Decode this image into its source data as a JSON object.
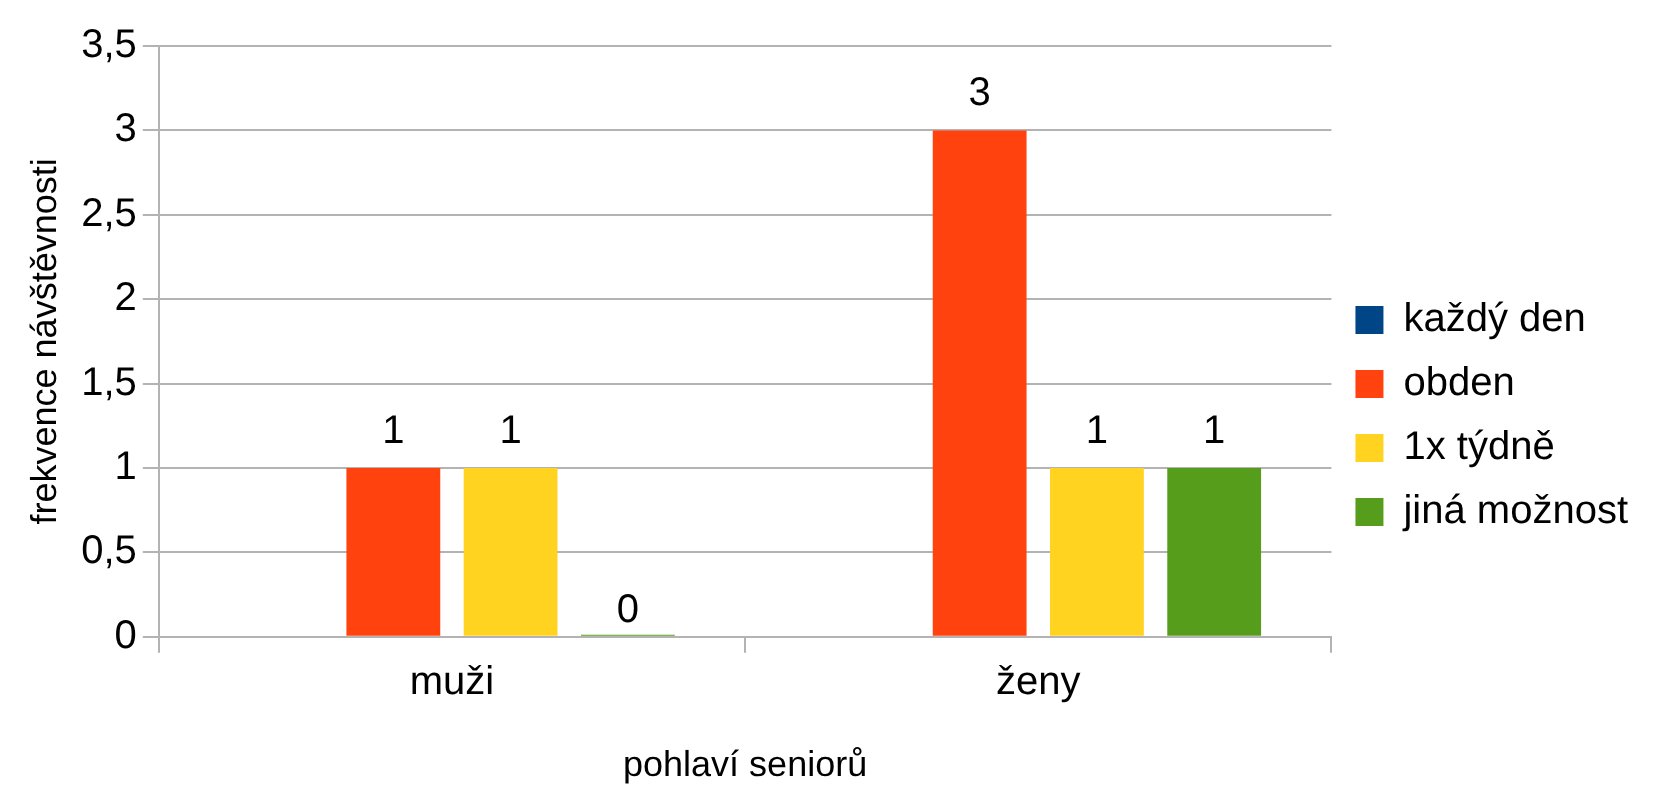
{
  "chart_data": {
    "type": "bar",
    "categories": [
      "muži",
      "ženy"
    ],
    "series": [
      {
        "name": "každý den",
        "color": "#004586",
        "values": [
          null,
          null
        ]
      },
      {
        "name": "obden",
        "color": "#ff420e",
        "values": [
          1,
          3
        ],
        "value_labels": [
          "1",
          "3"
        ]
      },
      {
        "name": "1x týdně",
        "color": "#ffd320",
        "values": [
          1,
          1
        ],
        "value_labels": [
          "1",
          "1"
        ]
      },
      {
        "name": "jiná možnost",
        "color": "#579d1c",
        "values": [
          0,
          1
        ],
        "value_labels": [
          "0",
          "1"
        ]
      }
    ],
    "xlabel": "pohlaví seniorů",
    "ylabel": "frekvence návštěvnosti",
    "ylim": [
      0,
      3.5
    ],
    "yticks": [
      0,
      {
        "value": 0.5,
        "label": "0,5"
      },
      1,
      {
        "value": 1.5,
        "label": "1,5"
      },
      2,
      {
        "value": 2.5,
        "label": "2,5"
      },
      3,
      {
        "value": 3.5,
        "label": "3,5"
      }
    ],
    "grid": "y",
    "legend": "right"
  }
}
